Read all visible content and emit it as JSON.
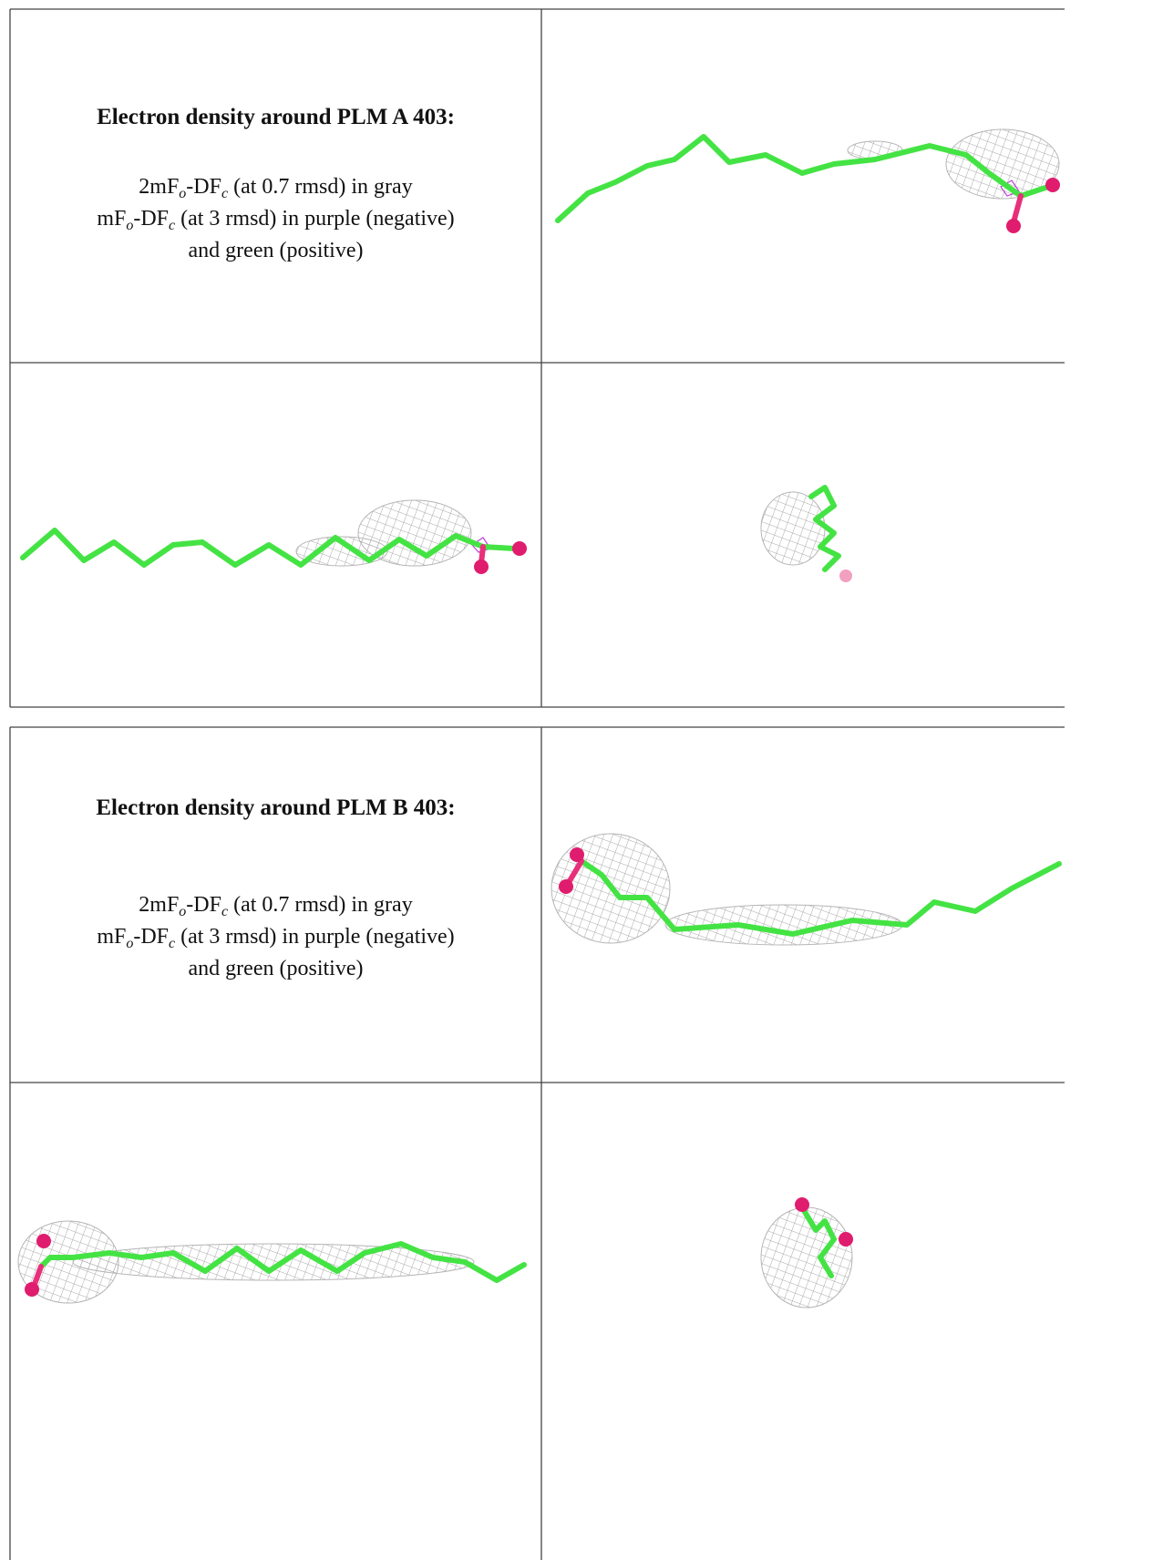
{
  "tables": [
    {
      "heading": "Electron density around PLM A 403:",
      "lines": [
        [
          "2mF",
          "o",
          "-DF",
          "c",
          " (at 0.7 rmsd) in gray"
        ],
        [
          "mF",
          "o",
          "-DF",
          "c",
          " (at 3 rmsd) in purple (negative)"
        ],
        [
          "and green (positive)"
        ]
      ]
    },
    {
      "heading": "Electron density around PLM B 403:",
      "lines": [
        [
          "2mF",
          "o",
          "-DF",
          "c",
          " (at 0.7 rmsd) in gray"
        ],
        [
          "mF",
          "o",
          "-DF",
          "c",
          " (at 3 rmsd) in purple (negative)"
        ],
        [
          "and green (positive)"
        ]
      ]
    }
  ]
}
